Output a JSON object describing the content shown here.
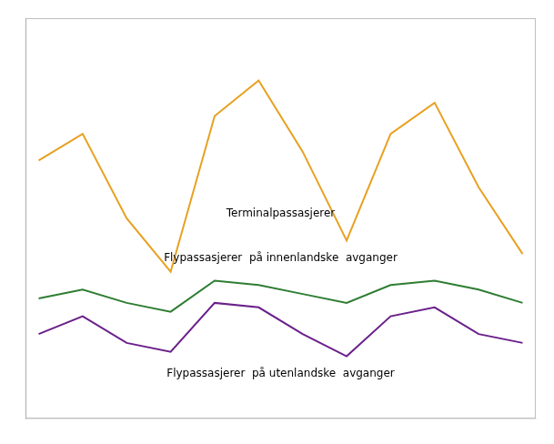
{
  "chart_data": {
    "type": "line",
    "x": [
      0,
      1,
      2,
      3,
      4,
      5,
      6,
      7,
      8,
      9,
      10,
      11
    ],
    "series": [
      {
        "color": "#E8A020",
        "values": [
          78,
          84,
          65,
          53,
          88,
          96,
          80,
          60,
          84,
          91,
          72,
          57
        ]
      },
      {
        "color": "#2E7D32",
        "values": [
          47,
          49,
          46,
          44,
          51,
          50,
          48,
          46,
          50,
          51,
          49,
          46
        ]
      },
      {
        "color": "#6A1F8A",
        "values": [
          39,
          43,
          37,
          35,
          46,
          45,
          39,
          34,
          43,
          45,
          39,
          37
        ]
      }
    ],
    "annotations": [
      {
        "text": "Terminalpassasjerer",
        "x": 5.5,
        "y": 66
      },
      {
        "text": "Flypassasjerer  på innenlandske  avganger",
        "x": 5.5,
        "y": 56
      },
      {
        "text": "Flypassasjerer  på utenlandske  avganger",
        "x": 5.5,
        "y": 30
      }
    ],
    "xlim": [
      -0.3,
      11.3
    ],
    "ylim": [
      20,
      110
    ],
    "grid": false,
    "tick_labels": false
  }
}
